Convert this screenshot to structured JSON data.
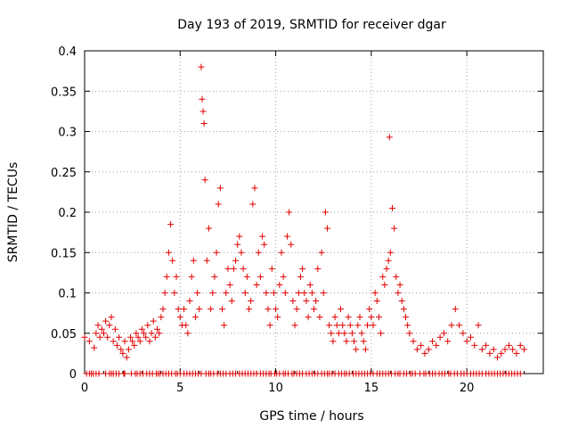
{
  "chart_data": {
    "type": "scatter",
    "title": "Day 193 of 2019, SRMTID for receiver dgar",
    "xlabel": "GPS time / hours",
    "ylabel": "SRMTID / TECUs",
    "xlim": [
      0,
      24
    ],
    "ylim": [
      0,
      0.4
    ],
    "xticks": [
      0,
      5,
      10,
      15,
      20
    ],
    "yticks": [
      0,
      0.05,
      0.1,
      0.15,
      0.2,
      0.25,
      0.3,
      0.35,
      0.4
    ],
    "xtick_labels": [
      "0",
      "5",
      "10",
      "15",
      "20"
    ],
    "ytick_labels": [
      "0",
      "0.05",
      "0.1",
      "0.15",
      "0.2",
      "0.25",
      "0.3",
      "0.35",
      "0.4"
    ],
    "grid": true,
    "marker": "+",
    "color": "#e00000",
    "series": [
      {
        "name": "SRMTID",
        "x": [
          0.0,
          0.25,
          0.5,
          0.6,
          0.7,
          0.8,
          0.9,
          1.0,
          1.1,
          1.2,
          1.3,
          1.4,
          1.5,
          1.6,
          1.7,
          1.8,
          1.9,
          2.0,
          2.1,
          2.2,
          2.3,
          2.4,
          2.5,
          2.6,
          2.7,
          2.8,
          2.9,
          3.0,
          3.1,
          3.2,
          3.3,
          3.4,
          3.5,
          3.6,
          3.7,
          3.8,
          3.9,
          4.0,
          4.1,
          4.2,
          4.3,
          4.4,
          4.5,
          4.6,
          4.7,
          4.8,
          4.9,
          5.0,
          5.1,
          5.2,
          5.3,
          5.4,
          5.5,
          5.6,
          5.7,
          5.8,
          5.9,
          6.0,
          6.1,
          6.15,
          6.2,
          6.25,
          6.3,
          6.4,
          6.5,
          6.6,
          6.7,
          6.8,
          6.9,
          7.0,
          7.1,
          7.2,
          7.3,
          7.4,
          7.5,
          7.6,
          7.7,
          7.8,
          7.9,
          8.0,
          8.1,
          8.2,
          8.3,
          8.4,
          8.5,
          8.6,
          8.7,
          8.8,
          8.9,
          9.0,
          9.1,
          9.2,
          9.3,
          9.4,
          9.5,
          9.6,
          9.7,
          9.8,
          9.9,
          10.0,
          10.1,
          10.2,
          10.3,
          10.4,
          10.5,
          10.6,
          10.7,
          10.8,
          10.9,
          11.0,
          11.1,
          11.2,
          11.3,
          11.4,
          11.5,
          11.6,
          11.7,
          11.8,
          11.9,
          12.0,
          12.1,
          12.2,
          12.3,
          12.4,
          12.5,
          12.6,
          12.7,
          12.8,
          12.9,
          13.0,
          13.1,
          13.2,
          13.3,
          13.4,
          13.5,
          13.6,
          13.7,
          13.8,
          13.9,
          14.0,
          14.1,
          14.2,
          14.3,
          14.4,
          14.5,
          14.6,
          14.7,
          14.8,
          14.9,
          15.0,
          15.1,
          15.2,
          15.3,
          15.4,
          15.5,
          15.6,
          15.7,
          15.8,
          15.9,
          15.95,
          16.0,
          16.1,
          16.2,
          16.3,
          16.4,
          16.5,
          16.6,
          16.7,
          16.8,
          16.9,
          17.0,
          17.2,
          17.4,
          17.6,
          17.8,
          18.0,
          18.2,
          18.4,
          18.6,
          18.8,
          19.0,
          19.2,
          19.4,
          19.6,
          19.8,
          20.0,
          20.2,
          20.4,
          20.6,
          20.8,
          21.0,
          21.2,
          21.4,
          21.6,
          21.8,
          22.0,
          22.2,
          22.4,
          22.6,
          22.8,
          23.0
        ],
        "y": [
          0.045,
          0.04,
          0.032,
          0.05,
          0.06,
          0.045,
          0.055,
          0.05,
          0.065,
          0.045,
          0.06,
          0.07,
          0.04,
          0.055,
          0.035,
          0.045,
          0.03,
          0.025,
          0.04,
          0.02,
          0.03,
          0.045,
          0.04,
          0.035,
          0.05,
          0.045,
          0.04,
          0.055,
          0.05,
          0.045,
          0.06,
          0.04,
          0.05,
          0.065,
          0.045,
          0.055,
          0.05,
          0.07,
          0.08,
          0.1,
          0.12,
          0.15,
          0.185,
          0.14,
          0.1,
          0.12,
          0.08,
          0.07,
          0.06,
          0.08,
          0.06,
          0.05,
          0.09,
          0.12,
          0.14,
          0.07,
          0.1,
          0.08,
          0.38,
          0.34,
          0.325,
          0.31,
          0.24,
          0.14,
          0.18,
          0.08,
          0.1,
          0.12,
          0.15,
          0.21,
          0.23,
          0.08,
          0.06,
          0.1,
          0.13,
          0.11,
          0.09,
          0.13,
          0.14,
          0.16,
          0.17,
          0.15,
          0.13,
          0.1,
          0.12,
          0.08,
          0.09,
          0.21,
          0.23,
          0.11,
          0.15,
          0.12,
          0.17,
          0.16,
          0.1,
          0.08,
          0.06,
          0.13,
          0.1,
          0.08,
          0.07,
          0.11,
          0.15,
          0.12,
          0.1,
          0.17,
          0.2,
          0.16,
          0.09,
          0.06,
          0.08,
          0.1,
          0.12,
          0.13,
          0.1,
          0.09,
          0.07,
          0.11,
          0.1,
          0.08,
          0.09,
          0.13,
          0.07,
          0.15,
          0.1,
          0.2,
          0.18,
          0.06,
          0.05,
          0.04,
          0.07,
          0.06,
          0.05,
          0.08,
          0.06,
          0.05,
          0.04,
          0.07,
          0.06,
          0.05,
          0.04,
          0.03,
          0.06,
          0.07,
          0.05,
          0.04,
          0.03,
          0.06,
          0.08,
          0.07,
          0.06,
          0.1,
          0.09,
          0.07,
          0.05,
          0.12,
          0.11,
          0.13,
          0.14,
          0.293,
          0.15,
          0.205,
          0.18,
          0.12,
          0.1,
          0.11,
          0.09,
          0.08,
          0.07,
          0.06,
          0.05,
          0.04,
          0.03,
          0.035,
          0.025,
          0.03,
          0.04,
          0.035,
          0.045,
          0.05,
          0.04,
          0.06,
          0.08,
          0.06,
          0.05,
          0.04,
          0.045,
          0.035,
          0.06,
          0.03,
          0.035,
          0.025,
          0.03,
          0.02,
          0.025,
          0.03,
          0.035,
          0.03,
          0.025,
          0.035,
          0.03
        ]
      }
    ],
    "zero_points_x": [
      0.1,
      0.25,
      0.35,
      0.45,
      0.6,
      0.75,
      1.1,
      1.3,
      1.4,
      1.5,
      1.65,
      1.8,
      2.05,
      2.1,
      2.45,
      2.65,
      2.75,
      2.9,
      3.05,
      3.25,
      3.4,
      3.55,
      3.75,
      3.85,
      3.95,
      4.1,
      4.25,
      4.4,
      4.55,
      4.75,
      4.85,
      5.0,
      5.2,
      5.35,
      5.5,
      5.65,
      5.8,
      5.95,
      6.1,
      6.35,
      6.5,
      6.6,
      6.75,
      6.95,
      7.1,
      7.25,
      7.4,
      7.6,
      7.75,
      7.9,
      8.1,
      8.25,
      8.4,
      8.55,
      8.7,
      8.85,
      9.0,
      9.2,
      9.35,
      9.5,
      9.65,
      9.75,
      9.95,
      10.05,
      10.2,
      10.4,
      10.5,
      10.65,
      10.85,
      10.95,
      11.1,
      11.25,
      11.4,
      11.6,
      11.75,
      11.9,
      12.05,
      12.2,
      12.4,
      12.55,
      12.7,
      12.8,
      12.95,
      13.1,
      13.3,
      13.45,
      13.6,
      13.7,
      13.85,
      14.05,
      14.2,
      14.35,
      14.5,
      14.65,
      14.8,
      14.95,
      15.1,
      15.3,
      15.45,
      15.6,
      15.75,
      15.9,
      16.05,
      16.25,
      16.4,
      16.5,
      16.7,
      16.85,
      17.05,
      17.15,
      17.3,
      17.55,
      17.75,
      17.85,
      18.05,
      18.2,
      18.35,
      18.55,
      18.7,
      18.85,
      19.05,
      19.15,
      19.35,
      19.5,
      19.7,
      19.85,
      20.0,
      20.2,
      20.35,
      20.5,
      20.65,
      20.8,
      21.0,
      21.15,
      21.3,
      21.45,
      21.6,
      21.75,
      21.9,
      22.05,
      22.2,
      22.35,
      22.5,
      22.65,
      22.8
    ]
  }
}
